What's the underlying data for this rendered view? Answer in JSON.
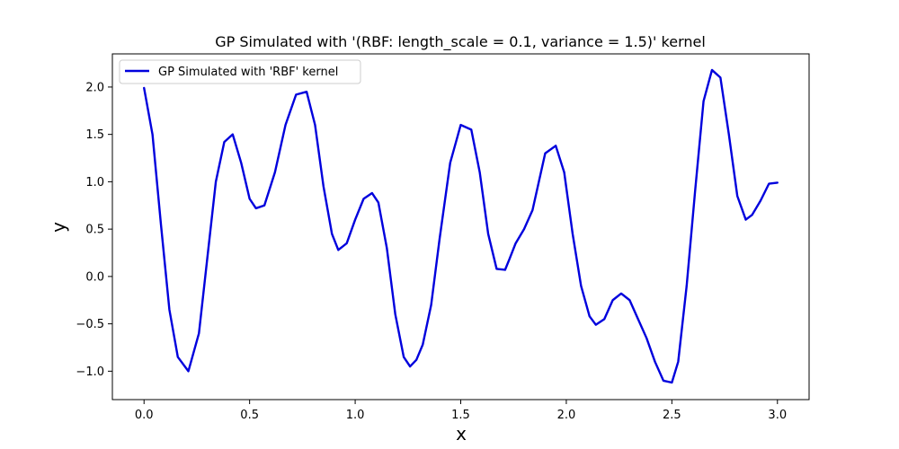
{
  "chart_data": {
    "type": "line",
    "title": "GP Simulated  with '(RBF: length_scale = 0.1, variance = 1.5)' kernel",
    "xlabel": "x",
    "ylabel": "y",
    "xlim": [
      -0.15,
      3.15
    ],
    "ylim": [
      -1.3,
      2.35
    ],
    "x_ticks": [
      0.0,
      0.5,
      1.0,
      1.5,
      2.0,
      2.5,
      3.0
    ],
    "x_tick_labels": [
      "0.0",
      "0.5",
      "1.0",
      "1.5",
      "2.0",
      "2.5",
      "3.0"
    ],
    "y_ticks": [
      -1.0,
      -0.5,
      0.0,
      0.5,
      1.0,
      1.5,
      2.0
    ],
    "y_tick_labels": [
      "−1.0",
      "−0.5",
      "0.0",
      "0.5",
      "1.0",
      "1.5",
      "2.0"
    ],
    "grid": false,
    "legend_position": "top-left",
    "series": [
      {
        "name": "GP Simulated  with 'RBF' kernel",
        "color": "#0000dd",
        "x": [
          0.0,
          0.04,
          0.08,
          0.12,
          0.16,
          0.21,
          0.26,
          0.3,
          0.34,
          0.38,
          0.42,
          0.46,
          0.5,
          0.53,
          0.57,
          0.62,
          0.67,
          0.72,
          0.77,
          0.81,
          0.85,
          0.89,
          0.92,
          0.96,
          1.0,
          1.04,
          1.08,
          1.11,
          1.15,
          1.19,
          1.23,
          1.26,
          1.29,
          1.32,
          1.36,
          1.4,
          1.45,
          1.5,
          1.55,
          1.59,
          1.63,
          1.67,
          1.71,
          1.73,
          1.76,
          1.8,
          1.84,
          1.87,
          1.9,
          1.95,
          1.99,
          2.03,
          2.07,
          2.11,
          2.14,
          2.18,
          2.22,
          2.26,
          2.3,
          2.34,
          2.38,
          2.42,
          2.46,
          2.5,
          2.53,
          2.57,
          2.61,
          2.65,
          2.69,
          2.73,
          2.77,
          2.81,
          2.85,
          2.88,
          2.92,
          2.96,
          3.0
        ],
        "y": [
          1.99,
          1.5,
          0.55,
          -0.35,
          -0.85,
          -1.0,
          -0.6,
          0.2,
          1.0,
          1.42,
          1.5,
          1.2,
          0.82,
          0.72,
          0.75,
          1.1,
          1.6,
          1.92,
          1.95,
          1.6,
          0.95,
          0.45,
          0.28,
          0.35,
          0.6,
          0.82,
          0.88,
          0.78,
          0.3,
          -0.4,
          -0.85,
          -0.95,
          -0.88,
          -0.72,
          -0.3,
          0.4,
          1.2,
          1.6,
          1.55,
          1.1,
          0.45,
          0.08,
          0.07,
          0.18,
          0.35,
          0.5,
          0.7,
          1.0,
          1.3,
          1.38,
          1.1,
          0.45,
          -0.1,
          -0.42,
          -0.51,
          -0.45,
          -0.25,
          -0.18,
          -0.25,
          -0.45,
          -0.65,
          -0.9,
          -1.1,
          -1.12,
          -0.9,
          -0.1,
          0.9,
          1.85,
          2.18,
          2.1,
          1.5,
          0.85,
          0.6,
          0.65,
          0.8,
          0.98,
          0.99
        ]
      }
    ]
  }
}
